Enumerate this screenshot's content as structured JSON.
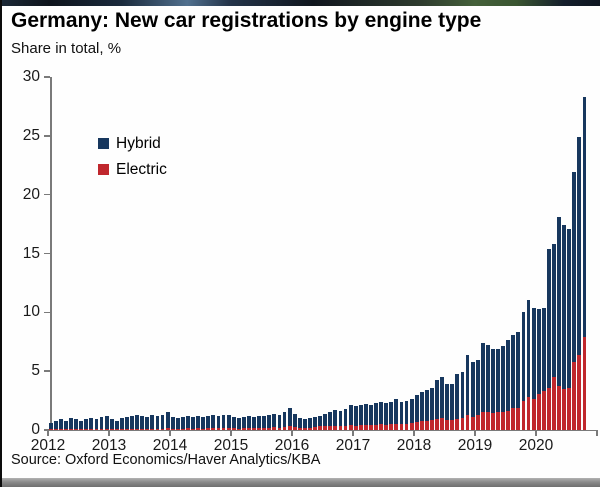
{
  "header": {
    "title": "Germany: New car registrations by engine type",
    "subtitle": "Share in total, %"
  },
  "legend": {
    "items": [
      {
        "label": "Hybrid",
        "color": "#17375e"
      },
      {
        "label": "Electric",
        "color": "#c0272d"
      }
    ]
  },
  "source": {
    "text": "Source: Oxford Economics/Haver Analytics/KBA"
  },
  "chart_data": {
    "type": "bar",
    "stacked": true,
    "frequency": "monthly",
    "x_range": [
      "2012-01",
      "2020-10"
    ],
    "x_tick_labels": [
      "2012",
      "2013",
      "2014",
      "2015",
      "2016",
      "2017",
      "2018",
      "2019",
      "2020"
    ],
    "y_ticks": [
      0,
      5,
      10,
      15,
      20,
      25,
      30
    ],
    "ylim": [
      0,
      30
    ],
    "grid": false,
    "legend_position": "upper-left-inside",
    "series": [
      {
        "name": "Electric",
        "color": "#c0272d",
        "stack": "bottom",
        "values": [
          0.05,
          0.06,
          0.06,
          0.05,
          0.06,
          0.06,
          0.05,
          0.06,
          0.07,
          0.06,
          0.08,
          0.08,
          0.08,
          0.07,
          0.1,
          0.1,
          0.12,
          0.12,
          0.1,
          0.1,
          0.12,
          0.12,
          0.12,
          0.15,
          0.12,
          0.1,
          0.12,
          0.15,
          0.12,
          0.15,
          0.12,
          0.15,
          0.15,
          0.15,
          0.15,
          0.18,
          0.15,
          0.12,
          0.15,
          0.18,
          0.15,
          0.18,
          0.18,
          0.2,
          0.22,
          0.2,
          0.25,
          0.3,
          0.25,
          0.15,
          0.15,
          0.2,
          0.25,
          0.3,
          0.3,
          0.3,
          0.35,
          0.3,
          0.35,
          0.4,
          0.35,
          0.4,
          0.4,
          0.4,
          0.45,
          0.5,
          0.45,
          0.5,
          0.55,
          0.5,
          0.55,
          0.6,
          0.7,
          0.75,
          0.8,
          0.85,
          0.9,
          1.0,
          0.85,
          0.85,
          0.95,
          1.0,
          1.3,
          1.1,
          1.3,
          1.5,
          1.5,
          1.45,
          1.5,
          1.55,
          1.6,
          1.85,
          1.9,
          2.5,
          2.8,
          2.6,
          3.1,
          3.3,
          3.6,
          4.5,
          3.7,
          3.5,
          3.6,
          5.8,
          6.4,
          7.9
        ]
      },
      {
        "name": "Hybrid",
        "color": "#17375e",
        "stack": "top",
        "values": [
          0.55,
          0.74,
          0.84,
          0.75,
          0.94,
          0.84,
          0.75,
          0.84,
          0.93,
          0.84,
          1.02,
          1.12,
          0.82,
          0.73,
          0.9,
          1.0,
          1.08,
          1.18,
          1.1,
          1.0,
          1.18,
          1.08,
          1.18,
          1.4,
          0.98,
          0.9,
          0.98,
          1.05,
          0.98,
          1.05,
          0.98,
          1.05,
          1.15,
          1.05,
          1.15,
          1.12,
          0.95,
          0.88,
          0.95,
          1.02,
          0.95,
          1.02,
          1.02,
          1.1,
          1.18,
          1.1,
          1.25,
          1.6,
          1.15,
          0.85,
          0.75,
          0.8,
          0.85,
          0.9,
          1.1,
          1.2,
          1.35,
          1.3,
          1.45,
          1.7,
          1.65,
          1.7,
          1.8,
          1.7,
          1.85,
          1.9,
          1.85,
          1.9,
          2.05,
          1.9,
          1.95,
          2.0,
          2.3,
          2.45,
          2.6,
          2.75,
          3.35,
          3.5,
          3.1,
          3.1,
          3.85,
          3.95,
          5.1,
          4.7,
          4.65,
          5.9,
          5.7,
          5.45,
          5.4,
          5.55,
          6.05,
          6.25,
          6.45,
          7.55,
          8.25,
          7.75,
          7.2,
          7.1,
          11.8,
          11.3,
          14.4,
          13.9,
          13.5,
          16.1,
          18.5,
          20.4
        ]
      }
    ]
  },
  "chrome": {
    "top_strip_colors": [
      "#1b2836 0%",
      "#0e141c 8%",
      "#1a2a3c 20%",
      "#51708e 31%",
      "#24344a 38%",
      "#10161e 52%",
      "#2e3b2e 70%",
      "#44603a 79%",
      "#3a5531 86%",
      "#141e2c 94%",
      "#0d1520 100%"
    ],
    "bottom_strip_colors": [
      "#b2b2b2 0%",
      "#8a8a8a 45%",
      "#6f6f6f 100%"
    ]
  }
}
